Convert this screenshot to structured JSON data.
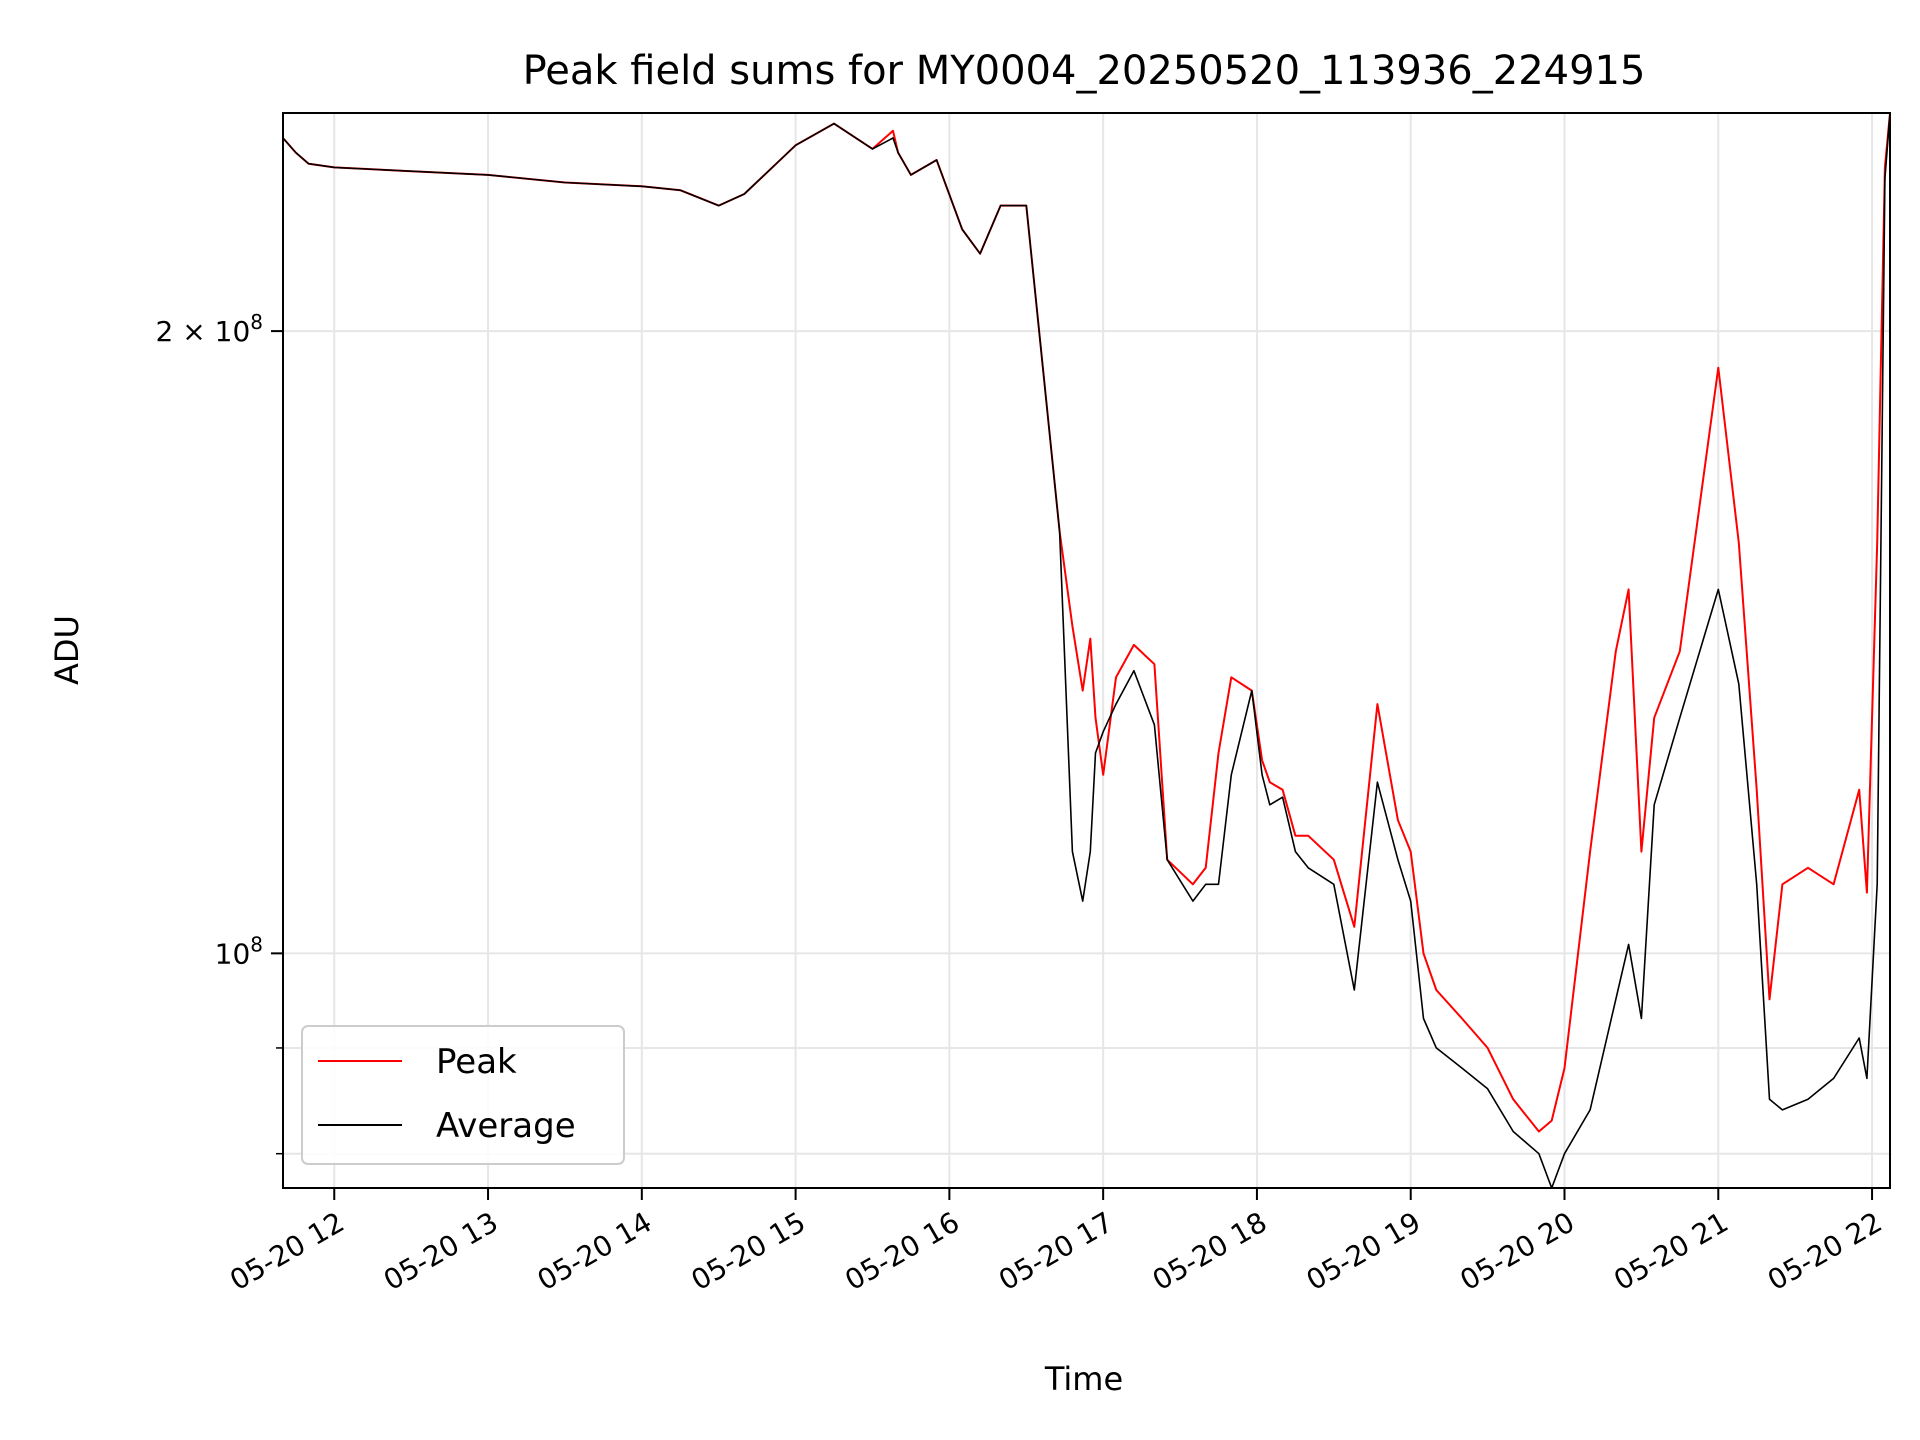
{
  "chart_data": {
    "type": "line",
    "title": "Peak field sums for MY0004_20250520_113936_224915",
    "xlabel": "Time",
    "ylabel": "ADU",
    "y_scale": "log",
    "ylim": [
      77000000,
      255000000
    ],
    "xlim": [
      "2025-05-20 11:40",
      "2025-05-20 22:07"
    ],
    "grid": true,
    "legend_position": "lower-left",
    "x_tick_values": [
      "2025-05-20 12:00",
      "2025-05-20 13:00",
      "2025-05-20 14:00",
      "2025-05-20 15:00",
      "2025-05-20 16:00",
      "2025-05-20 17:00",
      "2025-05-20 18:00",
      "2025-05-20 19:00",
      "2025-05-20 20:00",
      "2025-05-20 21:00",
      "2025-05-20 22:00"
    ],
    "x_tick_labels": [
      "05-20 12",
      "05-20 13",
      "05-20 14",
      "05-20 15",
      "05-20 16",
      "05-20 17",
      "05-20 18",
      "05-20 19",
      "05-20 20",
      "05-20 21",
      "05-20 22"
    ],
    "y_major_ticks": [
      {
        "value": 100000000,
        "mantissa": "",
        "exponent": "8"
      },
      {
        "value": 200000000,
        "mantissa": "2 × ",
        "exponent": "8"
      }
    ],
    "y_minor_ticks": [
      80000000,
      90000000
    ],
    "series": [
      {
        "name": "Peak",
        "color": "#ff0000",
        "x": [
          "2025-05-20 11:40",
          "2025-05-20 11:45",
          "2025-05-20 11:50",
          "2025-05-20 12:00",
          "2025-05-20 12:30",
          "2025-05-20 13:00",
          "2025-05-20 13:30",
          "2025-05-20 14:00",
          "2025-05-20 14:15",
          "2025-05-20 14:30",
          "2025-05-20 14:40",
          "2025-05-20 15:00",
          "2025-05-20 15:15",
          "2025-05-20 15:30",
          "2025-05-20 15:38",
          "2025-05-20 15:40",
          "2025-05-20 15:45",
          "2025-05-20 15:55",
          "2025-05-20 16:05",
          "2025-05-20 16:12",
          "2025-05-20 16:20",
          "2025-05-20 16:30",
          "2025-05-20 16:43",
          "2025-05-20 16:48",
          "2025-05-20 16:52",
          "2025-05-20 16:55",
          "2025-05-20 16:57",
          "2025-05-20 17:00",
          "2025-05-20 17:05",
          "2025-05-20 17:12",
          "2025-05-20 17:20",
          "2025-05-20 17:25",
          "2025-05-20 17:35",
          "2025-05-20 17:40",
          "2025-05-20 17:45",
          "2025-05-20 17:50",
          "2025-05-20 17:58",
          "2025-05-20 18:02",
          "2025-05-20 18:05",
          "2025-05-20 18:10",
          "2025-05-20 18:15",
          "2025-05-20 18:20",
          "2025-05-20 18:30",
          "2025-05-20 18:38",
          "2025-05-20 18:47",
          "2025-05-20 18:55",
          "2025-05-20 19:00",
          "2025-05-20 19:05",
          "2025-05-20 19:10",
          "2025-05-20 19:20",
          "2025-05-20 19:30",
          "2025-05-20 19:40",
          "2025-05-20 19:50",
          "2025-05-20 19:55",
          "2025-05-20 20:00",
          "2025-05-20 20:10",
          "2025-05-20 20:20",
          "2025-05-20 20:25",
          "2025-05-20 20:30",
          "2025-05-20 20:35",
          "2025-05-20 20:45",
          "2025-05-20 21:00",
          "2025-05-20 21:08",
          "2025-05-20 21:15",
          "2025-05-20 21:20",
          "2025-05-20 21:25",
          "2025-05-20 21:35",
          "2025-05-20 21:45",
          "2025-05-20 21:55",
          "2025-05-20 21:58",
          "2025-05-20 22:02",
          "2025-05-20 22:05",
          "2025-05-20 22:07"
        ],
        "values": [
          248000000,
          244000000,
          241000000,
          240000000,
          239000000,
          238000000,
          236000000,
          235000000,
          234000000,
          230000000,
          233000000,
          246000000,
          252000000,
          245000000,
          250000000,
          244000000,
          238000000,
          242000000,
          224000000,
          218000000,
          230000000,
          230000000,
          160000000,
          144000000,
          134000000,
          142000000,
          130000000,
          122000000,
          136000000,
          141000000,
          138000000,
          111000000,
          108000000,
          110000000,
          125000000,
          136000000,
          134000000,
          124000000,
          121000000,
          120000000,
          114000000,
          114000000,
          111000000,
          103000000,
          132000000,
          116000000,
          112000000,
          100000000,
          96000000,
          93000000,
          90000000,
          85000000,
          82000000,
          83000000,
          88000000,
          112000000,
          140000000,
          150000000,
          112000000,
          130000000,
          140000000,
          192000000,
          158000000,
          120000000,
          95000000,
          108000000,
          110000000,
          108000000,
          120000000,
          107000000,
          158000000,
          240000000,
          255000000
        ]
      },
      {
        "name": "Average",
        "color": "#000000",
        "x": [
          "2025-05-20 11:40",
          "2025-05-20 11:45",
          "2025-05-20 11:50",
          "2025-05-20 12:00",
          "2025-05-20 12:30",
          "2025-05-20 13:00",
          "2025-05-20 13:30",
          "2025-05-20 14:00",
          "2025-05-20 14:15",
          "2025-05-20 14:30",
          "2025-05-20 14:40",
          "2025-05-20 15:00",
          "2025-05-20 15:15",
          "2025-05-20 15:30",
          "2025-05-20 15:38",
          "2025-05-20 15:40",
          "2025-05-20 15:45",
          "2025-05-20 15:55",
          "2025-05-20 16:05",
          "2025-05-20 16:12",
          "2025-05-20 16:20",
          "2025-05-20 16:30",
          "2025-05-20 16:43",
          "2025-05-20 16:48",
          "2025-05-20 16:52",
          "2025-05-20 16:55",
          "2025-05-20 16:57",
          "2025-05-20 17:00",
          "2025-05-20 17:05",
          "2025-05-20 17:12",
          "2025-05-20 17:20",
          "2025-05-20 17:25",
          "2025-05-20 17:35",
          "2025-05-20 17:40",
          "2025-05-20 17:45",
          "2025-05-20 17:50",
          "2025-05-20 17:58",
          "2025-05-20 18:02",
          "2025-05-20 18:05",
          "2025-05-20 18:10",
          "2025-05-20 18:15",
          "2025-05-20 18:20",
          "2025-05-20 18:30",
          "2025-05-20 18:38",
          "2025-05-20 18:47",
          "2025-05-20 18:55",
          "2025-05-20 19:00",
          "2025-05-20 19:05",
          "2025-05-20 19:10",
          "2025-05-20 19:20",
          "2025-05-20 19:30",
          "2025-05-20 19:40",
          "2025-05-20 19:50",
          "2025-05-20 19:55",
          "2025-05-20 20:00",
          "2025-05-20 20:10",
          "2025-05-20 20:20",
          "2025-05-20 20:25",
          "2025-05-20 20:30",
          "2025-05-20 20:35",
          "2025-05-20 20:45",
          "2025-05-20 21:00",
          "2025-05-20 21:08",
          "2025-05-20 21:15",
          "2025-05-20 21:20",
          "2025-05-20 21:25",
          "2025-05-20 21:35",
          "2025-05-20 21:45",
          "2025-05-20 21:55",
          "2025-05-20 21:58",
          "2025-05-20 22:02",
          "2025-05-20 22:05",
          "2025-05-20 22:07"
        ],
        "values": [
          248000000,
          244000000,
          241000000,
          240000000,
          239000000,
          238000000,
          236000000,
          235000000,
          234000000,
          230000000,
          233000000,
          246000000,
          252000000,
          245000000,
          248000000,
          244000000,
          238000000,
          242000000,
          224000000,
          218000000,
          230000000,
          230000000,
          160000000,
          112000000,
          106000000,
          112000000,
          125000000,
          128000000,
          132000000,
          137000000,
          129000000,
          111000000,
          106000000,
          108000000,
          108000000,
          122000000,
          134000000,
          122000000,
          118000000,
          119000000,
          112000000,
          110000000,
          108000000,
          96000000,
          121000000,
          111000000,
          106000000,
          93000000,
          90000000,
          88000000,
          86000000,
          82000000,
          80000000,
          77000000,
          80000000,
          84000000,
          95000000,
          101000000,
          93000000,
          118000000,
          130000000,
          150000000,
          135000000,
          108000000,
          85000000,
          84000000,
          85000000,
          87000000,
          91000000,
          87000000,
          108000000,
          237000000,
          255000000
        ]
      }
    ]
  }
}
